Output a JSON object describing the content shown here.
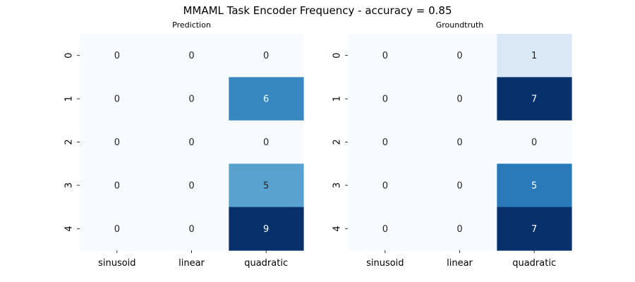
{
  "suptitle": "MMAML Task Encoder Frequency - accuracy = 0.85",
  "colormap": "Blues",
  "colormap_stops": [
    "#f7fbff",
    "#deebf7",
    "#c6dbef",
    "#9ecae1",
    "#6baed6",
    "#4292c6",
    "#2171b5",
    "#08519c",
    "#08306b"
  ],
  "chart_data": [
    {
      "type": "heatmap",
      "title": "Prediction",
      "xlabel": "",
      "ylabel": "",
      "x_categories": [
        "sinusoid",
        "linear",
        "quadratic"
      ],
      "y_categories": [
        "0",
        "1",
        "2",
        "3",
        "4"
      ],
      "values": [
        [
          0,
          0,
          0
        ],
        [
          0,
          0,
          6
        ],
        [
          0,
          0,
          0
        ],
        [
          0,
          0,
          5
        ],
        [
          0,
          0,
          9
        ]
      ],
      "color_range": [
        0,
        9
      ],
      "annotated": true,
      "colorbar": false,
      "grid": false
    },
    {
      "type": "heatmap",
      "title": "Groundtruth",
      "xlabel": "",
      "ylabel": "",
      "x_categories": [
        "sinusoid",
        "linear",
        "quadratic"
      ],
      "y_categories": [
        "0",
        "1",
        "2",
        "3",
        "4"
      ],
      "values": [
        [
          0,
          0,
          1
        ],
        [
          0,
          0,
          7
        ],
        [
          0,
          0,
          0
        ],
        [
          0,
          0,
          5
        ],
        [
          0,
          0,
          7
        ]
      ],
      "color_range": [
        0,
        7
      ],
      "annotated": true,
      "colorbar": false,
      "grid": false
    }
  ]
}
